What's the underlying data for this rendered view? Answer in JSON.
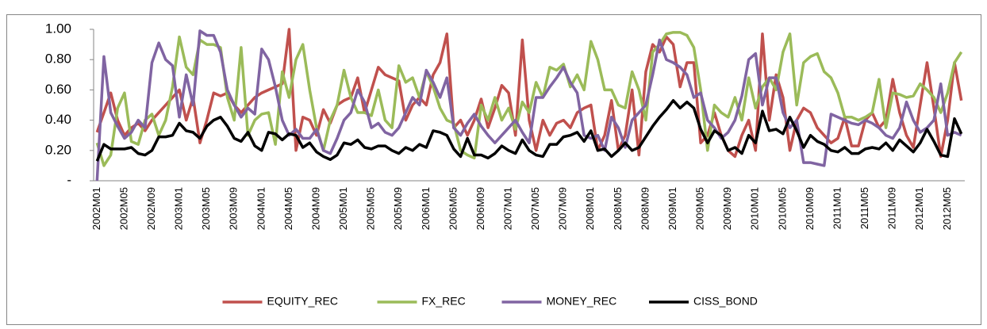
{
  "chart_data": {
    "type": "line",
    "categories": [
      "2002M01",
      null,
      null,
      null,
      "2002M05",
      null,
      null,
      null,
      "2002M09",
      null,
      null,
      null,
      "2003M01",
      null,
      null,
      null,
      "2003M05",
      null,
      null,
      null,
      "2003M09",
      null,
      null,
      null,
      "2004M01",
      null,
      null,
      null,
      "2004M05",
      null,
      null,
      null,
      "2004M09",
      null,
      null,
      null,
      "2005M01",
      null,
      null,
      null,
      "2005M05",
      null,
      null,
      null,
      "2005M09",
      null,
      null,
      null,
      "2006M01",
      null,
      null,
      null,
      "2006M05",
      null,
      null,
      null,
      "2006M09",
      null,
      null,
      null,
      "2007M01",
      null,
      null,
      null,
      "2007M05",
      null,
      null,
      null,
      "2007M09",
      null,
      null,
      null,
      "2008M01",
      null,
      null,
      null,
      "2008M05",
      null,
      null,
      null,
      "2008M09",
      null,
      null,
      null,
      "2009M01",
      null,
      null,
      null,
      "2009M05",
      null,
      null,
      null,
      "2009M09",
      null,
      null,
      null,
      "2010M01",
      null,
      null,
      null,
      "2010M05",
      null,
      null,
      null,
      "2010M09",
      null,
      null,
      null,
      "2011M01",
      null,
      null,
      null,
      "2011M05",
      null,
      null,
      null,
      "2011M09",
      null,
      null,
      null,
      "2012M01",
      null,
      null,
      null,
      "2012M05",
      null,
      null
    ],
    "series": [
      {
        "name": "EQUITY_REC",
        "color": "#c0504d",
        "values": [
          0.32,
          0.45,
          0.58,
          0.4,
          0.3,
          0.35,
          0.38,
          0.33,
          0.4,
          0.45,
          0.5,
          0.55,
          0.6,
          0.4,
          0.55,
          0.25,
          0.4,
          0.58,
          0.56,
          0.58,
          0.5,
          0.45,
          0.5,
          0.55,
          0.58,
          0.6,
          0.62,
          0.64,
          1.0,
          0.2,
          0.42,
          0.4,
          0.3,
          0.47,
          0.38,
          0.5,
          0.53,
          0.55,
          0.68,
          0.45,
          0.6,
          0.75,
          0.7,
          0.68,
          0.66,
          0.4,
          0.5,
          0.55,
          0.5,
          0.7,
          0.78,
          0.97,
          0.35,
          0.4,
          0.3,
          0.4,
          0.54,
          0.35,
          0.48,
          0.63,
          0.58,
          0.3,
          0.93,
          0.4,
          0.2,
          0.4,
          0.3,
          0.38,
          0.4,
          0.35,
          0.45,
          0.48,
          0.5,
          0.2,
          0.3,
          0.53,
          0.2,
          0.3,
          0.6,
          0.17,
          0.72,
          0.9,
          0.85,
          0.95,
          0.9,
          0.62,
          0.78,
          0.78,
          0.25,
          0.3,
          0.45,
          0.3,
          0.2,
          0.16,
          0.3,
          0.4,
          0.2,
          0.97,
          0.4,
          0.7,
          0.55,
          0.2,
          0.4,
          0.48,
          0.45,
          0.35,
          0.3,
          0.25,
          0.28,
          0.42,
          0.23,
          0.23,
          0.4,
          0.45,
          0.35,
          0.4,
          0.67,
          0.45,
          0.3,
          0.22,
          0.5,
          0.78,
          0.48,
          0.16,
          0.4,
          0.78,
          0.53
        ]
      },
      {
        "name": "FX_REC",
        "color": "#9bbb59",
        "values": [
          0.25,
          0.1,
          0.17,
          0.48,
          0.58,
          0.26,
          0.24,
          0.4,
          0.44,
          0.3,
          0.4,
          0.62,
          0.95,
          0.75,
          0.7,
          0.93,
          0.9,
          0.9,
          0.88,
          0.55,
          0.4,
          0.88,
          0.3,
          0.4,
          0.44,
          0.45,
          0.24,
          0.72,
          0.55,
          0.8,
          0.9,
          0.6,
          0.35,
          0.2,
          0.4,
          0.5,
          0.73,
          0.55,
          0.45,
          0.45,
          0.43,
          0.6,
          0.4,
          0.35,
          0.76,
          0.65,
          0.68,
          0.55,
          0.72,
          0.62,
          0.48,
          0.4,
          0.38,
          0.2,
          0.17,
          0.15,
          0.5,
          0.4,
          0.55,
          0.4,
          0.48,
          0.34,
          0.52,
          0.45,
          0.65,
          0.55,
          0.75,
          0.73,
          0.77,
          0.62,
          0.7,
          0.6,
          0.92,
          0.8,
          0.6,
          0.6,
          0.5,
          0.48,
          0.72,
          0.6,
          0.4,
          0.85,
          0.9,
          0.97,
          0.98,
          0.98,
          0.96,
          0.88,
          0.6,
          0.2,
          0.5,
          0.45,
          0.42,
          0.55,
          0.4,
          0.68,
          0.48,
          0.62,
          0.68,
          0.6,
          0.85,
          0.97,
          0.5,
          0.78,
          0.82,
          0.84,
          0.72,
          0.68,
          0.58,
          0.42,
          0.42,
          0.4,
          0.42,
          0.45,
          0.67,
          0.35,
          0.58,
          0.57,
          0.55,
          0.56,
          0.64,
          0.6,
          0.55,
          0.45,
          0.58,
          0.78,
          0.85
        ]
      },
      {
        "name": "MONEY_REC",
        "color": "#8064a2",
        "values": [
          0.0,
          0.82,
          0.45,
          0.36,
          0.28,
          0.32,
          0.4,
          0.35,
          0.78,
          0.91,
          0.8,
          0.76,
          0.42,
          0.7,
          0.5,
          0.99,
          0.96,
          0.96,
          0.85,
          0.6,
          0.5,
          0.42,
          0.48,
          0.44,
          0.87,
          0.8,
          0.62,
          0.4,
          0.3,
          0.34,
          0.28,
          0.28,
          0.34,
          0.2,
          0.18,
          0.28,
          0.4,
          0.45,
          0.6,
          0.52,
          0.35,
          0.38,
          0.32,
          0.3,
          0.35,
          0.45,
          0.55,
          0.5,
          0.73,
          0.65,
          0.55,
          0.68,
          0.35,
          0.3,
          0.38,
          0.44,
          0.36,
          0.3,
          0.25,
          0.3,
          0.35,
          0.4,
          0.32,
          0.25,
          0.55,
          0.55,
          0.62,
          0.68,
          0.75,
          0.65,
          0.58,
          0.3,
          0.28,
          0.3,
          0.2,
          0.42,
          0.35,
          0.22,
          0.4,
          0.45,
          0.5,
          0.7,
          0.93,
          0.8,
          0.78,
          0.75,
          0.7,
          0.55,
          0.58,
          0.4,
          0.35,
          0.28,
          0.32,
          0.4,
          0.56,
          0.8,
          0.84,
          0.5,
          0.68,
          0.68,
          0.45,
          0.35,
          0.4,
          0.12,
          0.12,
          0.11,
          0.1,
          0.44,
          0.42,
          0.4,
          0.38,
          0.37,
          0.4,
          0.38,
          0.35,
          0.3,
          0.28,
          0.35,
          0.52,
          0.4,
          0.32,
          0.35,
          0.4,
          0.64,
          0.3,
          0.32,
          0.3
        ]
      },
      {
        "name": "CISS_BOND",
        "color": "#000000",
        "values": [
          0.13,
          0.24,
          0.21,
          0.21,
          0.21,
          0.22,
          0.18,
          0.17,
          0.2,
          0.29,
          0.29,
          0.3,
          0.38,
          0.33,
          0.32,
          0.28,
          0.36,
          0.4,
          0.42,
          0.36,
          0.28,
          0.26,
          0.32,
          0.23,
          0.2,
          0.32,
          0.31,
          0.27,
          0.31,
          0.3,
          0.22,
          0.25,
          0.19,
          0.16,
          0.14,
          0.17,
          0.25,
          0.24,
          0.27,
          0.22,
          0.21,
          0.23,
          0.23,
          0.2,
          0.18,
          0.22,
          0.2,
          0.24,
          0.22,
          0.33,
          0.32,
          0.3,
          0.21,
          0.16,
          0.28,
          0.17,
          0.17,
          0.15,
          0.18,
          0.23,
          0.2,
          0.18,
          0.27,
          0.2,
          0.17,
          0.16,
          0.24,
          0.24,
          0.29,
          0.3,
          0.32,
          0.26,
          0.33,
          0.2,
          0.21,
          0.16,
          0.2,
          0.25,
          0.2,
          0.22,
          0.29,
          0.36,
          0.42,
          0.47,
          0.53,
          0.48,
          0.52,
          0.48,
          0.34,
          0.25,
          0.33,
          0.3,
          0.2,
          0.22,
          0.18,
          0.3,
          0.25,
          0.46,
          0.33,
          0.34,
          0.31,
          0.42,
          0.33,
          0.22,
          0.3,
          0.26,
          0.24,
          0.2,
          0.19,
          0.22,
          0.18,
          0.18,
          0.21,
          0.22,
          0.21,
          0.25,
          0.2,
          0.27,
          0.23,
          0.19,
          0.25,
          0.34,
          0.26,
          0.17,
          0.16,
          0.41,
          0.31
        ]
      }
    ],
    "ylim": [
      0,
      1
    ],
    "yticks": [
      {
        "value": 0,
        "label": "-"
      },
      {
        "value": 0.2,
        "label": "0.20"
      },
      {
        "value": 0.4,
        "label": "0.40"
      },
      {
        "value": 0.6,
        "label": "0.60"
      },
      {
        "value": 0.8,
        "label": "0.80"
      },
      {
        "value": 1,
        "label": "1.00"
      }
    ],
    "grid": false,
    "legend": "bottom"
  }
}
